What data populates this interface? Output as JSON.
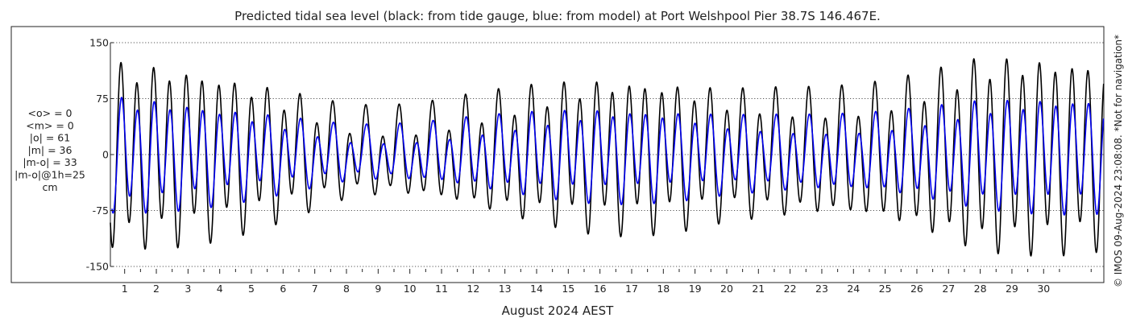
{
  "chart_data": {
    "type": "line",
    "title": "Predicted tidal sea level (black: from tide gauge, blue: from model) at Port Welshpool Pier 38.7S 146.467E.",
    "xlabel": "August 2024 AEST",
    "ylabel": "",
    "xlim": [
      0.55,
      31.9
    ],
    "ylim": [
      -150,
      150
    ],
    "y_ticks": [
      150,
      75,
      0,
      -75,
      -150
    ],
    "x_ticks": [
      1,
      2,
      3,
      4,
      5,
      6,
      7,
      8,
      9,
      10,
      11,
      12,
      13,
      14,
      15,
      16,
      17,
      18,
      19,
      20,
      21,
      22,
      23,
      24,
      25,
      26,
      27,
      28,
      29,
      30
    ],
    "grid": "dotted horizontal",
    "stats_lines": [
      "<o> = 0",
      "<m> = 0",
      "|o| = 61",
      "|m| = 36",
      "|m-o| = 33",
      "|m-o|@1h=25",
      "cm"
    ],
    "side_note": "© IMOS 09-Aug-2024 23:08:08. *Not for navigation*",
    "series": [
      {
        "name": "tide gauge",
        "color": "#000000",
        "hourly_step_days": 0.0416667,
        "start_x": 0.55,
        "tidal_model": {
          "constituents": [
            {
              "period_days": 0.5175,
              "amp_x": [
                0.55,
                4,
                8,
                12,
                16,
                20,
                24,
                28,
                31.9
              ],
              "amp": [
                95,
                80,
                60,
                70,
                72,
                65,
                90,
                115,
                90
              ],
              "phase": 2.0
            },
            {
              "period_days": 0.5,
              "amp_x": [
                0.55,
                31.9
              ],
              "amp": [
                18,
                18
              ],
              "phase": 1.0
            },
            {
              "period_days": 1.0758,
              "amp_x": [
                0.55,
                31.9
              ],
              "amp": [
                22,
                22
              ],
              "phase": 0.3
            }
          ]
        }
      },
      {
        "name": "model",
        "color": "#0000ee",
        "hourly_step_days": 0.0416667,
        "start_x": 0.6,
        "tidal_model": {
          "constituents": [
            {
              "period_days": 0.5175,
              "amp_x": [
                0.55,
                4,
                8,
                12,
                16,
                20,
                24,
                28,
                31.9
              ],
              "amp": [
                60,
                48,
                36,
                42,
                44,
                40,
                52,
                62,
                56
              ],
              "phase": 1.75
            },
            {
              "period_days": 0.5,
              "amp_x": [
                0.55,
                31.9
              ],
              "amp": [
                10,
                10
              ],
              "phase": 0.85
            },
            {
              "period_days": 1.0758,
              "amp_x": [
                0.55,
                31.9
              ],
              "amp": [
                14,
                14
              ],
              "phase": 0.15
            }
          ]
        }
      }
    ]
  },
  "colors": {
    "axis": "#222222",
    "grid": "#555555",
    "background": "#ffffff"
  }
}
